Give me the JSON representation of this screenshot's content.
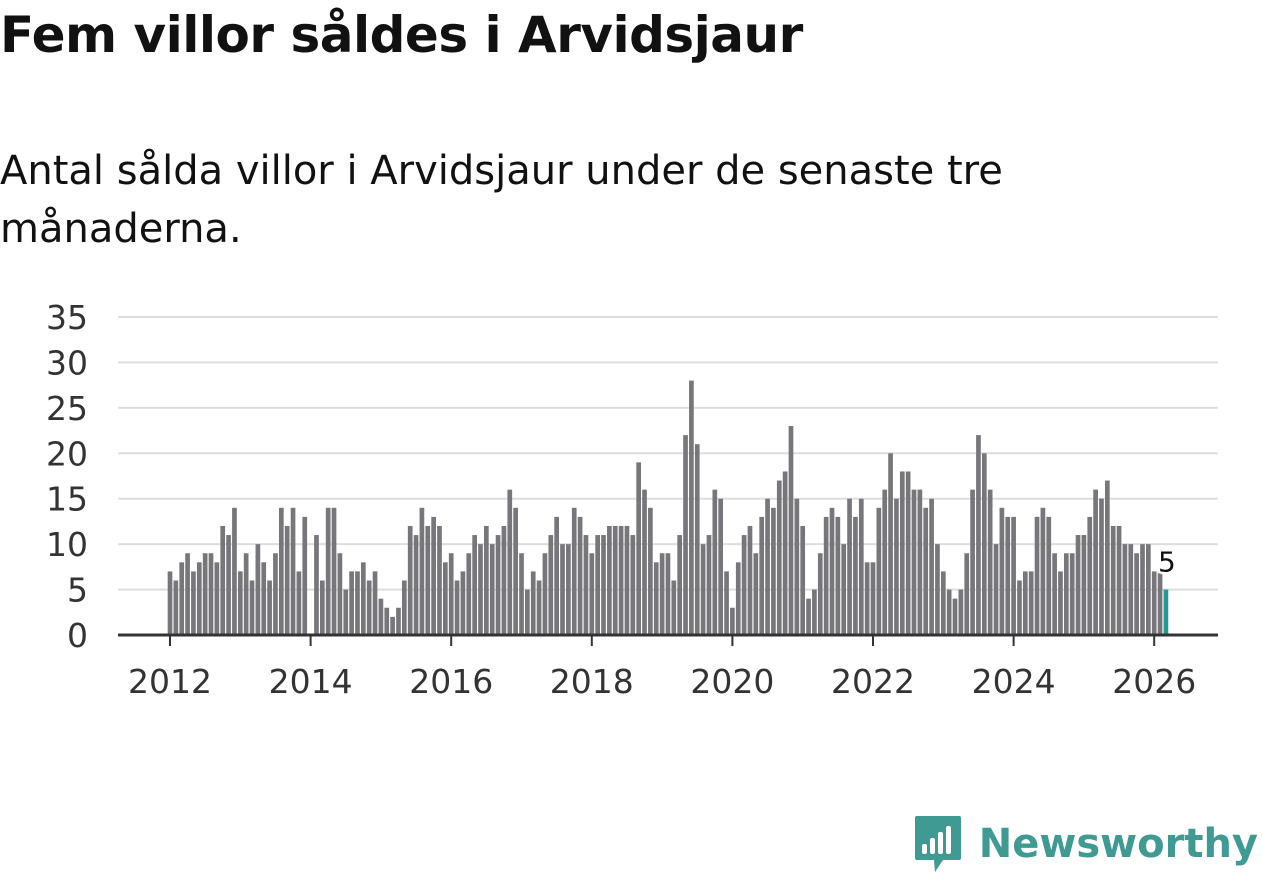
{
  "title": "Fem villor såldes i Arvidsjaur",
  "subtitle": "Antal sålda villor i Arvidsjaur under de senaste tre månaderna.",
  "brand": {
    "name": "Newsworthy",
    "logo_icon": "newsworthy-logo-icon",
    "color": "#3f9a93"
  },
  "colors": {
    "bar": "#77767b",
    "highlight": "#1f9b93",
    "grid": "#dddddd",
    "axis": "#333333"
  },
  "chart_data": {
    "type": "bar",
    "title": "",
    "xlabel": "",
    "ylabel": "",
    "ylim": [
      0,
      35
    ],
    "yticks": [
      "0",
      "5",
      "10",
      "15",
      "20",
      "25",
      "30",
      "35"
    ],
    "xticks": [
      "2012",
      "2014",
      "2016",
      "2018",
      "2020",
      "2022",
      "2024",
      "2026"
    ],
    "x_start": "2012-01",
    "grid": true,
    "highlight_label": "5",
    "series": [
      {
        "name": "Antal sålda villor",
        "values": [
          7,
          6,
          8,
          9,
          7,
          8,
          9,
          9,
          8,
          12,
          11,
          14,
          7,
          9,
          6,
          10,
          8,
          6,
          9,
          14,
          12,
          14,
          7,
          13,
          0,
          11,
          6,
          14,
          14,
          9,
          5,
          7,
          7,
          8,
          6,
          7,
          4,
          3,
          2,
          3,
          6,
          12,
          11,
          14,
          12,
          13,
          12,
          8,
          9,
          6,
          7,
          9,
          11,
          10,
          12,
          10,
          11,
          12,
          16,
          14,
          9,
          5,
          7,
          6,
          9,
          11,
          13,
          10,
          10,
          14,
          13,
          11,
          9,
          11,
          11,
          12,
          12,
          12,
          12,
          11,
          19,
          16,
          14,
          8,
          9,
          9,
          6,
          11,
          22,
          28,
          21,
          10,
          11,
          16,
          15,
          7,
          3,
          8,
          11,
          12,
          9,
          13,
          15,
          14,
          17,
          18,
          23,
          15,
          12,
          4,
          5,
          9,
          13,
          14,
          13,
          10,
          15,
          13,
          15,
          8,
          8,
          14,
          16,
          20,
          15,
          18,
          18,
          16,
          16,
          14,
          15,
          10,
          7,
          5,
          4,
          5,
          9,
          16,
          22,
          20,
          16,
          10,
          14,
          13,
          13,
          6,
          7,
          7,
          13,
          14,
          13,
          9,
          7,
          9,
          9,
          11,
          11,
          13,
          16,
          15,
          17,
          12,
          12,
          10,
          10,
          9,
          10,
          10,
          7,
          7,
          5
        ]
      }
    ]
  }
}
